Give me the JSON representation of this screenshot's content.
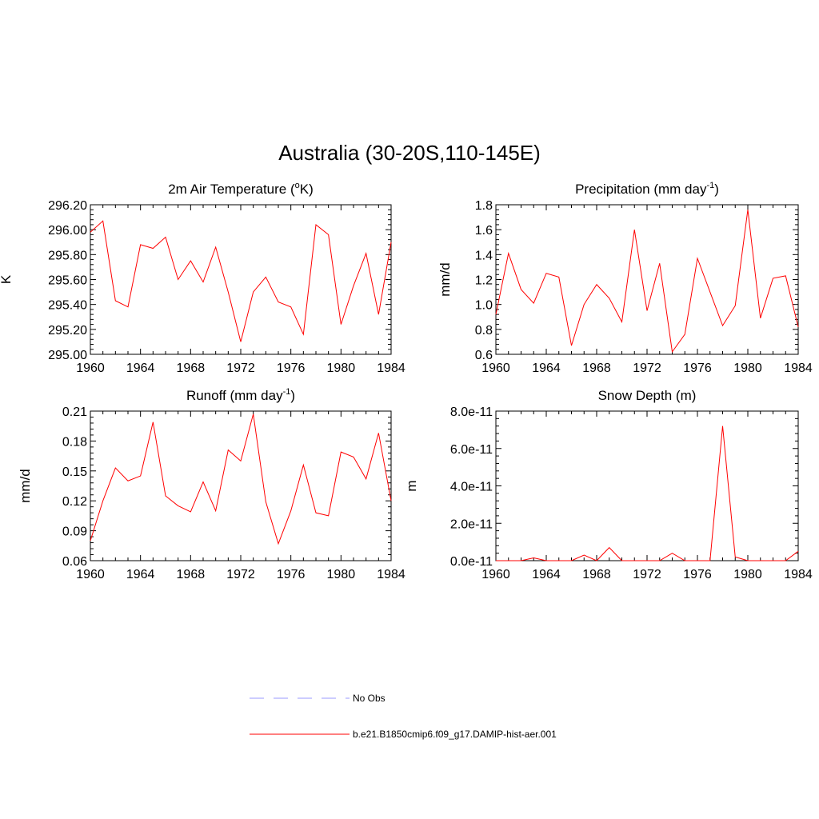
{
  "figure": {
    "title": "Australia (30-20S,110-145E)"
  },
  "colors": {
    "model_line": "#ff0000",
    "obs_line": "#9999ff",
    "axis": "#000000"
  },
  "legend": {
    "entries": [
      {
        "label": "No Obs",
        "style": "dashed",
        "color": "#9999ff"
      },
      {
        "label": "b.e21.B1850cmip6.f09_g17.DAMIP-hist-aer.001",
        "style": "solid",
        "color": "#ff0000"
      }
    ]
  },
  "chart_data": [
    {
      "type": "line",
      "title": "2m Air Temperature (oK)",
      "title_parts": [
        "2m Air Temperature (",
        "o",
        "K)"
      ],
      "xlabel": "",
      "ylabel": "K",
      "xlim": [
        1960,
        1984
      ],
      "ylim": [
        295.0,
        296.2
      ],
      "x_ticks": [
        1960,
        1964,
        1968,
        1972,
        1976,
        1980,
        1984
      ],
      "y_ticks": [
        295.0,
        295.2,
        295.4,
        295.6,
        295.8,
        296.0,
        296.2
      ],
      "y_tick_labels": [
        "295.00",
        "295.20",
        "295.40",
        "295.60",
        "295.80",
        "296.00",
        "296.20"
      ],
      "x": [
        1960,
        1961,
        1962,
        1963,
        1964,
        1965,
        1966,
        1967,
        1968,
        1969,
        1970,
        1971,
        1972,
        1973,
        1974,
        1975,
        1976,
        1977,
        1978,
        1979,
        1980,
        1981,
        1982,
        1983,
        1984
      ],
      "series": [
        {
          "name": "b.e21.B1850cmip6.f09_g17.DAMIP-hist-aer.001",
          "values": [
            295.98,
            296.07,
            295.43,
            295.38,
            295.88,
            295.85,
            295.94,
            295.6,
            295.75,
            295.58,
            295.86,
            295.5,
            295.1,
            295.5,
            295.62,
            295.42,
            295.38,
            295.16,
            296.04,
            295.96,
            295.24,
            295.55,
            295.81,
            295.32,
            295.9
          ]
        }
      ]
    },
    {
      "type": "line",
      "title": "Precipitation (mm day-1)",
      "title_parts": [
        "Precipitation (mm day",
        "-1",
        ")"
      ],
      "xlabel": "",
      "ylabel": "mm/d",
      "xlim": [
        1960,
        1984
      ],
      "ylim": [
        0.6,
        1.8
      ],
      "x_ticks": [
        1960,
        1964,
        1968,
        1972,
        1976,
        1980,
        1984
      ],
      "y_ticks": [
        0.6,
        0.8,
        1.0,
        1.2,
        1.4,
        1.6,
        1.8
      ],
      "y_tick_labels": [
        "0.6",
        "0.8",
        "1.0",
        "1.2",
        "1.4",
        "1.6",
        "1.8"
      ],
      "x": [
        1960,
        1961,
        1962,
        1963,
        1964,
        1965,
        1966,
        1967,
        1968,
        1969,
        1970,
        1971,
        1972,
        1973,
        1974,
        1975,
        1976,
        1977,
        1978,
        1979,
        1980,
        1981,
        1982,
        1983,
        1984
      ],
      "series": [
        {
          "name": "b.e21.B1850cmip6.f09_g17.DAMIP-hist-aer.001",
          "values": [
            0.92,
            1.41,
            1.12,
            1.01,
            1.25,
            1.22,
            0.67,
            1.0,
            1.16,
            1.05,
            0.86,
            1.6,
            0.95,
            1.33,
            0.62,
            0.76,
            1.37,
            1.1,
            0.83,
            0.99,
            1.76,
            0.89,
            1.21,
            1.23,
            0.82
          ]
        }
      ]
    },
    {
      "type": "line",
      "title": "Runoff (mm day-1)",
      "title_parts": [
        "Runoff (mm day",
        "-1",
        ")"
      ],
      "xlabel": "",
      "ylabel": "mm/d",
      "xlim": [
        1960,
        1984
      ],
      "ylim": [
        0.06,
        0.21
      ],
      "x_ticks": [
        1960,
        1964,
        1968,
        1972,
        1976,
        1980,
        1984
      ],
      "y_ticks": [
        0.06,
        0.09,
        0.12,
        0.15,
        0.18,
        0.21
      ],
      "y_tick_labels": [
        "0.06",
        "0.09",
        "0.12",
        "0.15",
        "0.18",
        "0.21"
      ],
      "x": [
        1960,
        1961,
        1962,
        1963,
        1964,
        1965,
        1966,
        1967,
        1968,
        1969,
        1970,
        1971,
        1972,
        1973,
        1974,
        1975,
        1976,
        1977,
        1978,
        1979,
        1980,
        1981,
        1982,
        1983,
        1984
      ],
      "series": [
        {
          "name": "b.e21.B1850cmip6.f09_g17.DAMIP-hist-aer.001",
          "values": [
            0.08,
            0.12,
            0.153,
            0.14,
            0.145,
            0.199,
            0.125,
            0.115,
            0.109,
            0.139,
            0.11,
            0.171,
            0.16,
            0.207,
            0.119,
            0.077,
            0.11,
            0.156,
            0.108,
            0.105,
            0.169,
            0.164,
            0.142,
            0.188,
            0.12
          ]
        }
      ]
    },
    {
      "type": "line",
      "title": "Snow Depth (m)",
      "title_parts": [
        "Snow Depth (m)",
        "",
        ""
      ],
      "xlabel": "",
      "ylabel": "m",
      "xlim": [
        1960,
        1984
      ],
      "ylim": [
        0,
        8e-11
      ],
      "x_ticks": [
        1960,
        1964,
        1968,
        1972,
        1976,
        1980,
        1984
      ],
      "y_ticks": [
        0,
        2e-11,
        4e-11,
        6e-11,
        8e-11
      ],
      "y_tick_labels": [
        "0.0e-11",
        "2.0e-11",
        "4.0e-11",
        "6.0e-11",
        "8.0e-11"
      ],
      "x": [
        1960,
        1961,
        1962,
        1963,
        1964,
        1965,
        1966,
        1967,
        1968,
        1969,
        1970,
        1971,
        1972,
        1973,
        1974,
        1975,
        1976,
        1977,
        1978,
        1979,
        1980,
        1981,
        1982,
        1983,
        1984
      ],
      "series": [
        {
          "name": "b.e21.B1850cmip6.f09_g17.DAMIP-hist-aer.001",
          "values": [
            0,
            0,
            0,
            1.5e-12,
            0,
            0,
            0,
            3e-12,
            0,
            7e-12,
            0,
            0,
            0,
            0,
            4e-12,
            0,
            0,
            0,
            7.2e-11,
            2e-12,
            0,
            0,
            0,
            0,
            5e-12
          ]
        }
      ]
    }
  ]
}
